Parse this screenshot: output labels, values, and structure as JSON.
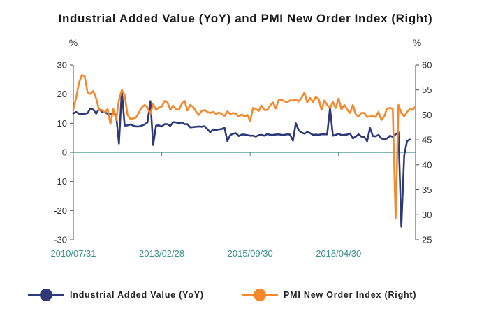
{
  "chart_data": {
    "type": "line",
    "title": "Industrial Added Value (YoY) and PMI New Order Index (Right)",
    "left_unit": "%",
    "right_unit": "%",
    "left_axis": {
      "ylim": [
        -30,
        30
      ],
      "ticks": [
        "30",
        "20",
        "10",
        "0",
        "-10",
        "-20",
        "-30"
      ]
    },
    "right_axis": {
      "ylim": [
        25,
        60
      ],
      "ticks": [
        "60",
        "55",
        "50",
        "45",
        "40",
        "35",
        "30",
        "25"
      ]
    },
    "x_range": [
      0,
      120
    ],
    "x_tick_labels": [
      {
        "label": "2010/07/31",
        "x": 0
      },
      {
        "label": "2013/02/28",
        "x": 31
      },
      {
        "label": "2015/09/30",
        "x": 62
      },
      {
        "label": "2018/04/30",
        "x": 93
      }
    ],
    "colors": {
      "industrial": "#2e3a78",
      "pmi": "#f5882a",
      "axis": "#4a4a4a",
      "zero_line": "#3b8a88",
      "tick_label": "#3a8f91"
    },
    "series": [
      {
        "name": "Industrial Added Value (YoY)",
        "axis": "left",
        "x": [
          0,
          1,
          2,
          3,
          4,
          5,
          6,
          7,
          8,
          9,
          10,
          11,
          12,
          13,
          14,
          15,
          16,
          17,
          18,
          19,
          20,
          21,
          22,
          23,
          24,
          25,
          26,
          27,
          28,
          29,
          30,
          31,
          32,
          33,
          34,
          35,
          36,
          37,
          38,
          39,
          40,
          41,
          42,
          43,
          44,
          45,
          46,
          47,
          48,
          49,
          50,
          51,
          52,
          53,
          54,
          55,
          56,
          57,
          58,
          59,
          60,
          61,
          62,
          63,
          64,
          65,
          66,
          67,
          68,
          69,
          70,
          71,
          72,
          73,
          74,
          75,
          76,
          77,
          78,
          79,
          80,
          81,
          82,
          83,
          84,
          85,
          86,
          87,
          88,
          89,
          90,
          91,
          92,
          93,
          94,
          95,
          96,
          97,
          98,
          99,
          100,
          101,
          102,
          103,
          104,
          105,
          106,
          107,
          108,
          109,
          110,
          111,
          112,
          113,
          114,
          115,
          116,
          117,
          118
        ],
        "values": [
          13.4,
          13.9,
          13.3,
          13.1,
          13.3,
          13.5,
          15.1,
          14.7,
          13.3,
          14.9,
          14.0,
          13.8,
          13.3,
          13.1,
          13.5,
          12.8,
          3.0,
          21.2,
          9.2,
          9.3,
          9.6,
          9.2,
          8.9,
          8.9,
          9.2,
          9.6,
          10.3,
          17.6,
          2.5,
          9.2,
          9.3,
          8.9,
          9.7,
          9.7,
          9.1,
          10.4,
          10.3,
          10.0,
          10.3,
          9.7,
          9.7,
          8.6,
          8.7,
          8.8,
          8.9,
          8.8,
          9.0,
          8.0,
          6.9,
          7.9,
          7.7,
          7.9,
          8.0,
          8.5,
          3.9,
          5.9,
          6.4,
          6.6,
          5.6,
          6.1,
          6.1,
          5.9,
          5.7,
          5.7,
          5.4,
          5.9,
          6.0,
          5.7,
          6.3,
          6.0,
          6.0,
          6.1,
          6.2,
          6.0,
          6.0,
          6.2,
          6.1,
          4.0,
          10.0,
          7.6,
          6.8,
          6.4,
          7.0,
          6.6,
          6.0,
          6.1,
          6.0,
          6.2,
          6.2,
          6.2,
          15.3,
          5.7,
          6.0,
          6.4,
          5.9,
          6.0,
          6.1,
          6.5,
          4.8,
          5.4,
          6.2,
          5.4,
          5.3,
          3.8,
          8.4,
          5.6,
          5.5,
          6.0,
          4.8,
          4.4,
          4.8,
          5.7,
          5.3,
          6.2,
          6.9,
          -25.5,
          -1.1,
          3.9,
          4.4
        ],
        "color": "#2e3a78"
      },
      {
        "name": "PMI New Order Index (Right)",
        "axis": "right",
        "x": [
          0,
          1,
          2,
          3,
          4,
          5,
          6,
          7,
          8,
          9,
          10,
          11,
          12,
          13,
          14,
          15,
          16,
          17,
          18,
          19,
          20,
          21,
          22,
          23,
          24,
          25,
          26,
          27,
          28,
          29,
          30,
          31,
          32,
          33,
          34,
          35,
          36,
          37,
          38,
          39,
          40,
          41,
          42,
          43,
          44,
          45,
          46,
          47,
          48,
          49,
          50,
          51,
          52,
          53,
          54,
          55,
          56,
          57,
          58,
          59,
          60,
          61,
          62,
          63,
          64,
          65,
          66,
          67,
          68,
          69,
          70,
          71,
          72,
          73,
          74,
          75,
          76,
          77,
          78,
          79,
          80,
          81,
          82,
          83,
          84,
          85,
          86,
          87,
          88,
          89,
          90,
          91,
          92,
          93,
          94,
          95,
          96,
          97,
          98,
          99,
          100,
          101,
          102,
          103,
          104,
          105,
          106,
          107,
          108,
          109,
          110,
          111,
          112,
          113,
          114,
          115,
          116,
          117,
          118,
          119,
          120
        ],
        "values": [
          51.1,
          53.5,
          56.5,
          58.0,
          57.7,
          54.5,
          54.2,
          54.8,
          53.3,
          51.0,
          51.0,
          50.5,
          51.2,
          48.2,
          51.2,
          49.0,
          53.0,
          55.0,
          54.0,
          50.0,
          49.2,
          49.3,
          49.5,
          50.5,
          51.5,
          52.0,
          51.5,
          50.1,
          52.2,
          51.0,
          51.5,
          51.7,
          52.8,
          52.5,
          51.0,
          51.9,
          51.2,
          51.0,
          52.2,
          52.8,
          50.9,
          52.0,
          51.6,
          50.7,
          50.0,
          50.8,
          51.0,
          50.6,
          50.4,
          50.6,
          50.2,
          50.5,
          50.2,
          49.8,
          50.7,
          50.2,
          50.4,
          50.2,
          49.7,
          50.1,
          49.7,
          50.0,
          48.8,
          51.4,
          51.2,
          50.8,
          51.9,
          51.0,
          51.0,
          51.9,
          52.5,
          51.3,
          53.0,
          53.1,
          52.7,
          52.6,
          52.9,
          52.9,
          53.1,
          52.7,
          53.4,
          54.5,
          52.5,
          53.4,
          52.6,
          53.6,
          53.2,
          51.0,
          52.9,
          52.0,
          51.4,
          52.6,
          51.4,
          53.3,
          51.1,
          52.0,
          51.1,
          50.4,
          52.0,
          50.1,
          49.7,
          50.4,
          50.4,
          49.6,
          49.7,
          49.8,
          49.6,
          50.6,
          49.0,
          49.7,
          51.3,
          51.4,
          51.2,
          29.3,
          52.0,
          50.4,
          49.7,
          50.6,
          51.2,
          51.0,
          51.8
        ],
        "color": "#f5882a"
      }
    ]
  },
  "legend": {
    "industrial_label": "Industrial Added Value (YoY)",
    "pmi_label": "PMI New Order Index (Right)"
  }
}
